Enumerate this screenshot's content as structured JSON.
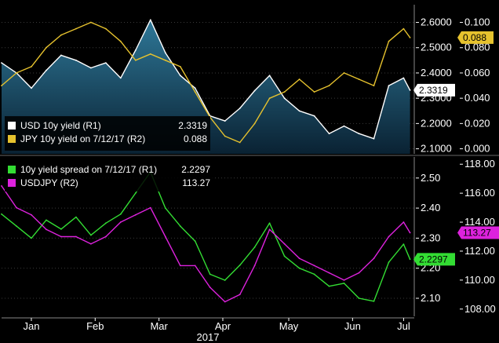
{
  "chart_data": [
    {
      "type": "area",
      "panel": "top",
      "legend_position": "bottom-left",
      "legend": [
        {
          "label": "USD 10y yield (R1)",
          "value": "2.3319",
          "color": "#ffffff"
        },
        {
          "label": "JPY 10y yield on 7/12/17 (R2)",
          "value": "0.088",
          "color": "#e6c22e"
        }
      ],
      "axes": {
        "R1": {
          "ticks": [
            "2.6000",
            "2.5000",
            "2.4000",
            "2.3000",
            "2.2000",
            "2.1000"
          ],
          "range": [
            2.08,
            2.67
          ]
        },
        "R2": {
          "ticks": [
            "0.100",
            "0.080",
            "0.060",
            "0.040",
            "0.020",
            "0.000"
          ],
          "range": [
            -0.004,
            0.114
          ]
        }
      },
      "last_value_tags": [
        {
          "axis": "R1",
          "value": 2.3319,
          "text": "2.3319",
          "bg": "#ffffff",
          "fg": "#000000"
        },
        {
          "axis": "R2",
          "value": 0.088,
          "text": "0.088",
          "bg": "#e6c22e",
          "fg": "#000000"
        }
      ],
      "x": [
        "2017-01-01",
        "2017-01-08",
        "2017-01-15",
        "2017-01-22",
        "2017-01-29",
        "2017-02-05",
        "2017-02-12",
        "2017-02-19",
        "2017-02-26",
        "2017-03-05",
        "2017-03-12",
        "2017-03-19",
        "2017-03-26",
        "2017-04-02",
        "2017-04-09",
        "2017-04-16",
        "2017-04-23",
        "2017-04-30",
        "2017-05-07",
        "2017-05-14",
        "2017-05-21",
        "2017-05-28",
        "2017-06-04",
        "2017-06-11",
        "2017-06-18",
        "2017-06-25",
        "2017-07-02",
        "2017-07-09",
        "2017-07-12"
      ],
      "series": [
        {
          "axis": "R1",
          "color": "#ffffff",
          "values": [
            2.44,
            2.4,
            2.34,
            2.41,
            2.47,
            2.45,
            2.42,
            2.44,
            2.38,
            2.49,
            2.61,
            2.48,
            2.39,
            2.34,
            2.23,
            2.21,
            2.26,
            2.33,
            2.39,
            2.3,
            2.25,
            2.23,
            2.16,
            2.19,
            2.16,
            2.14,
            2.35,
            2.38,
            2.3319
          ]
        },
        {
          "axis": "R2",
          "color": "#e6c22e",
          "values": [
            0.05,
            0.06,
            0.065,
            0.08,
            0.09,
            0.095,
            0.1,
            0.095,
            0.085,
            0.07,
            0.075,
            0.07,
            0.065,
            0.045,
            0.025,
            0.01,
            0.005,
            0.02,
            0.04,
            0.045,
            0.055,
            0.045,
            0.05,
            0.06,
            0.055,
            0.05,
            0.085,
            0.095,
            0.088
          ]
        }
      ]
    },
    {
      "type": "line",
      "panel": "bottom",
      "legend_position": "top-left",
      "legend": [
        {
          "label": "10y yield spread on 7/12/17 (R1)",
          "value": "2.2297",
          "color": "#33dd33"
        },
        {
          "label": "USDJPY (R2)",
          "value": "113.27",
          "color": "#dd22dd"
        }
      ],
      "axes": {
        "R1": {
          "ticks": [
            "2.50",
            "2.40",
            "2.30",
            "2.20",
            "2.10"
          ],
          "range": [
            2.04,
            2.57
          ]
        },
        "R2": {
          "ticks": [
            "118.00",
            "116.00",
            "114.00",
            "112.00",
            "110.00",
            "108.00"
          ],
          "range": [
            107.5,
            118.5
          ]
        }
      },
      "last_value_tags": [
        {
          "axis": "R1",
          "value": 2.2297,
          "text": "2.2297",
          "bg": "#33dd33",
          "fg": "#000000"
        },
        {
          "axis": "R2",
          "value": 113.27,
          "text": "113.27",
          "bg": "#dd22dd",
          "fg": "#000000"
        }
      ],
      "x": [
        "2017-01-01",
        "2017-01-08",
        "2017-01-15",
        "2017-01-22",
        "2017-01-29",
        "2017-02-05",
        "2017-02-12",
        "2017-02-19",
        "2017-02-26",
        "2017-03-05",
        "2017-03-12",
        "2017-03-19",
        "2017-03-26",
        "2017-04-02",
        "2017-04-09",
        "2017-04-16",
        "2017-04-23",
        "2017-04-30",
        "2017-05-07",
        "2017-05-14",
        "2017-05-21",
        "2017-05-28",
        "2017-06-04",
        "2017-06-11",
        "2017-06-18",
        "2017-06-25",
        "2017-07-02",
        "2017-07-09",
        "2017-07-12"
      ],
      "series": [
        {
          "axis": "R1",
          "color": "#33dd33",
          "values": [
            2.38,
            2.34,
            2.3,
            2.36,
            2.33,
            2.37,
            2.31,
            2.35,
            2.38,
            2.45,
            2.52,
            2.4,
            2.34,
            2.29,
            2.18,
            2.16,
            2.21,
            2.27,
            2.35,
            2.24,
            2.2,
            2.18,
            2.14,
            2.15,
            2.1,
            2.09,
            2.22,
            2.28,
            2.2297
          ]
        },
        {
          "axis": "R2",
          "color": "#dd22dd",
          "values": [
            116.5,
            115.0,
            114.5,
            113.5,
            113.0,
            113.0,
            112.5,
            113.0,
            114.0,
            114.5,
            115.0,
            113.0,
            111.0,
            111.0,
            109.5,
            108.5,
            109.0,
            111.0,
            113.5,
            112.5,
            111.5,
            111.0,
            110.5,
            110.0,
            110.5,
            111.5,
            113.0,
            114.0,
            113.27
          ]
        }
      ]
    }
  ],
  "x_axis": {
    "tick_labels": [
      {
        "label": "Jan",
        "date": "2017-01-15"
      },
      {
        "label": "Feb",
        "date": "2017-02-14"
      },
      {
        "label": "Mar",
        "date": "2017-03-16"
      },
      {
        "label": "Apr",
        "date": "2017-04-15"
      },
      {
        "label": "May",
        "date": "2017-05-16"
      },
      {
        "label": "Jun",
        "date": "2017-06-15"
      },
      {
        "label": "Jul",
        "date": "2017-07-09"
      }
    ],
    "year_label": "2017",
    "range": [
      "2017-01-01",
      "2017-07-14"
    ]
  },
  "colors": {
    "background": "#000000",
    "area_fill_top": "#2e7797",
    "area_fill_bottom": "#0a2233",
    "grid": "#3a3a3a",
    "axis_text": "#ffffff",
    "legend_bg": "#000000"
  }
}
